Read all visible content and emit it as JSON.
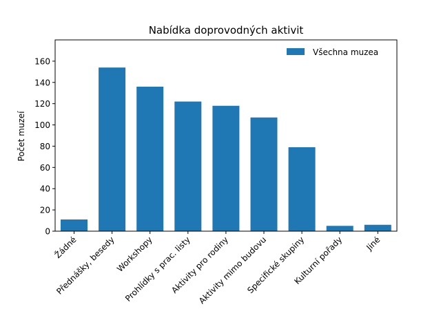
{
  "chart_data": {
    "type": "bar",
    "title": "Nabídka doprovodných aktivit",
    "xlabel": "",
    "ylabel": "Počet muzeí",
    "categories": [
      "Žádné",
      "Přednášky, besedy",
      "Workshopy",
      "Prohlídky s prac. listy",
      "Aktivity pro rodiny",
      "Aktivity mimo budovu",
      "Specifické skupiny",
      "Kulturní pořady",
      "Jiné"
    ],
    "series": [
      {
        "name": "Všechna muzea",
        "values": [
          11,
          154,
          136,
          122,
          118,
          107,
          79,
          5,
          6
        ],
        "color": "#1f77b4"
      }
    ],
    "ylim": [
      0,
      180
    ],
    "yticks": [
      0,
      20,
      40,
      60,
      80,
      100,
      120,
      140,
      160
    ],
    "grid": false,
    "legend_position": "top-right"
  }
}
